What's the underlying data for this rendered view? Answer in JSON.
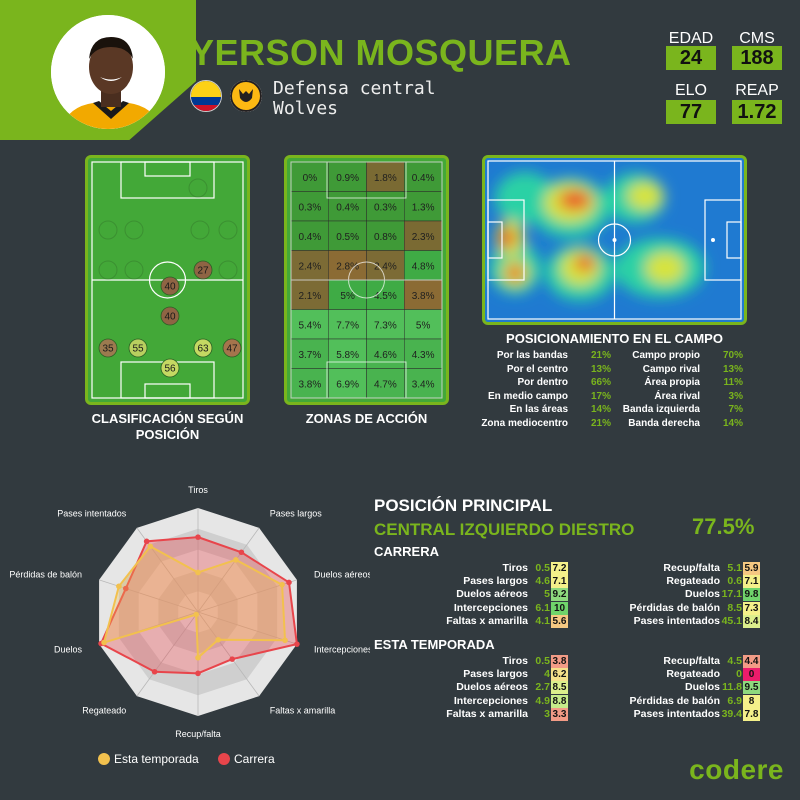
{
  "player": {
    "name": "YERSON MOSQUERA",
    "position": "Defensa central",
    "club": "Wolves",
    "stats": [
      {
        "label": "EDAD",
        "value": "24"
      },
      {
        "label": "CMS",
        "value": "188"
      },
      {
        "label": "ELO",
        "value": "77"
      },
      {
        "label": "REAP",
        "value": "1.72"
      }
    ]
  },
  "captions": {
    "classification": "CLASIFICACIÓN SEGÚN POSICIÓN",
    "zones": "ZONAS DE ACCIÓN",
    "positioning": "POSICIONAMIENTO EN EL CAMPO"
  },
  "position_ratings": [
    {
      "value": "35",
      "color": "#9c7a4f"
    },
    {
      "value": "55",
      "color": "#b9cf5f"
    },
    {
      "value": "63",
      "color": "#c5d962"
    },
    {
      "value": "47",
      "color": "#a5744c"
    },
    {
      "value": "56",
      "color": "#c5d962"
    },
    {
      "value": "40",
      "color": "#8f6444"
    },
    {
      "value": "40",
      "color": "#8f6444"
    },
    {
      "value": "27",
      "color": "#8f6444"
    }
  ],
  "zones": {
    "values": [
      [
        "0%",
        "0.9%",
        "1.8%",
        "0.4%"
      ],
      [
        "0.3%",
        "0.4%",
        "0.3%",
        "1.3%"
      ],
      [
        "0.4%",
        "0.5%",
        "0.8%",
        "2.3%"
      ],
      [
        "2.4%",
        "2.8%",
        "2.4%",
        "4.8%"
      ],
      [
        "2.1%",
        "5%",
        "4.5%",
        "3.8%"
      ],
      [
        "5.4%",
        "7.7%",
        "7.3%",
        "5%"
      ],
      [
        "3.7%",
        "5.8%",
        "4.6%",
        "4.3%"
      ],
      [
        "3.8%",
        "6.9%",
        "4.7%",
        "3.4%"
      ]
    ]
  },
  "positioning": {
    "left": [
      {
        "label": "Por las bandas",
        "value": "21%"
      },
      {
        "label": "Por el centro",
        "value": "13%"
      },
      {
        "label": "Por dentro",
        "value": "66%"
      },
      {
        "label": "En medio campo",
        "value": "17%"
      },
      {
        "label": "En las áreas",
        "value": "14%"
      },
      {
        "label": "Zona mediocentro",
        "value": "21%"
      }
    ],
    "right": [
      {
        "label": "Campo propio",
        "value": "70%"
      },
      {
        "label": "Campo rival",
        "value": "13%"
      },
      {
        "label": "Área propia",
        "value": "11%"
      },
      {
        "label": "Área rival",
        "value": "3%"
      },
      {
        "label": "Banda izquierda",
        "value": "7%"
      },
      {
        "label": "Banda derecha",
        "value": "14%"
      }
    ]
  },
  "radar": {
    "axes": [
      "Tiros",
      "Pases largos",
      "Duelos aéreos",
      "Intercepciones",
      "Faltas x amarilla",
      "Recup/falta",
      "Regateado",
      "Duelos",
      "Pérdidas de balón",
      "Pases intentados"
    ],
    "legend": {
      "season": "Esta temporada",
      "career": "Carrera"
    },
    "colors": {
      "season": "#f2c14e",
      "career": "#e8454b"
    }
  },
  "chart_data": {
    "type": "radar",
    "categories": [
      "Tiros",
      "Pases largos",
      "Duelos aéreos",
      "Intercepciones",
      "Faltas x amarilla",
      "Recup/falta",
      "Regateado",
      "Duelos",
      "Pérdidas de balón",
      "Pases intentados"
    ],
    "series": [
      {
        "name": "Carrera",
        "values": [
          7.2,
          7.1,
          9.2,
          10,
          5.6,
          5.9,
          7.1,
          9.8,
          7.3,
          8.4
        ]
      },
      {
        "name": "Esta temporada",
        "values": [
          3.8,
          6.2,
          8.5,
          8.8,
          3.3,
          4.4,
          0,
          9.5,
          8,
          7.8
        ]
      }
    ],
    "ylim": [
      0,
      10
    ]
  },
  "main_position": {
    "title": "POSICIÓN PRINCIPAL",
    "role": "CENTRAL IZQUIERDO DIESTRO",
    "pct": "77.5%"
  },
  "career": {
    "title": "CARRERA",
    "left": [
      {
        "label": "Tiros",
        "value": "0.5",
        "pct": "7.2",
        "color": "#f4f08a"
      },
      {
        "label": "Pases largos",
        "value": "4.6",
        "pct": "7.1",
        "color": "#f4f08a"
      },
      {
        "label": "Duelos aéreos",
        "value": "5",
        "pct": "9.2",
        "color": "#8ed97e"
      },
      {
        "label": "Intercepciones",
        "value": "6.1",
        "pct": "10",
        "color": "#6fd46b"
      },
      {
        "label": "Faltas x amarilla",
        "value": "4.1",
        "pct": "5.6",
        "color": "#f5c882"
      }
    ],
    "right": [
      {
        "label": "Recup/falta",
        "value": "5.1",
        "pct": "5.9",
        "color": "#f5c882"
      },
      {
        "label": "Regateado",
        "value": "0.6",
        "pct": "7.1",
        "color": "#f4f08a"
      },
      {
        "label": "Duelos",
        "value": "17.1",
        "pct": "9.8",
        "color": "#6fd46b"
      },
      {
        "label": "Pérdidas de balón",
        "value": "8.5",
        "pct": "7.3",
        "color": "#f4f08a"
      },
      {
        "label": "Pases intentados",
        "value": "45.1",
        "pct": "8.4",
        "color": "#dcef8c"
      }
    ]
  },
  "season": {
    "title": "ESTA TEMPORADA",
    "left": [
      {
        "label": "Tiros",
        "value": "0.5",
        "pct": "3.8",
        "color": "#f29b86"
      },
      {
        "label": "Pases largos",
        "value": "4",
        "pct": "6.2",
        "color": "#f5e08a"
      },
      {
        "label": "Duelos aéreos",
        "value": "2.7",
        "pct": "8.5",
        "color": "#dcef8c"
      },
      {
        "label": "Intercepciones",
        "value": "4.9",
        "pct": "8.8",
        "color": "#c6eb8a"
      },
      {
        "label": "Faltas x amarilla",
        "value": "3",
        "pct": "3.3",
        "color": "#f29b86"
      }
    ],
    "right": [
      {
        "label": "Recup/falta",
        "value": "4.5",
        "pct": "4.4",
        "color": "#f29b86"
      },
      {
        "label": "Regateado",
        "value": "0",
        "pct": "0",
        "color": "#ec1c6b"
      },
      {
        "label": "Duelos",
        "value": "11.8",
        "pct": "9.5",
        "color": "#8ed97e"
      },
      {
        "label": "Pérdidas de balón",
        "value": "6.9",
        "pct": "8",
        "color": "#f4f08a"
      },
      {
        "label": "Pases intentados",
        "value": "39.4",
        "pct": "7.8",
        "color": "#f4f08a"
      }
    ]
  },
  "brand": "codere"
}
